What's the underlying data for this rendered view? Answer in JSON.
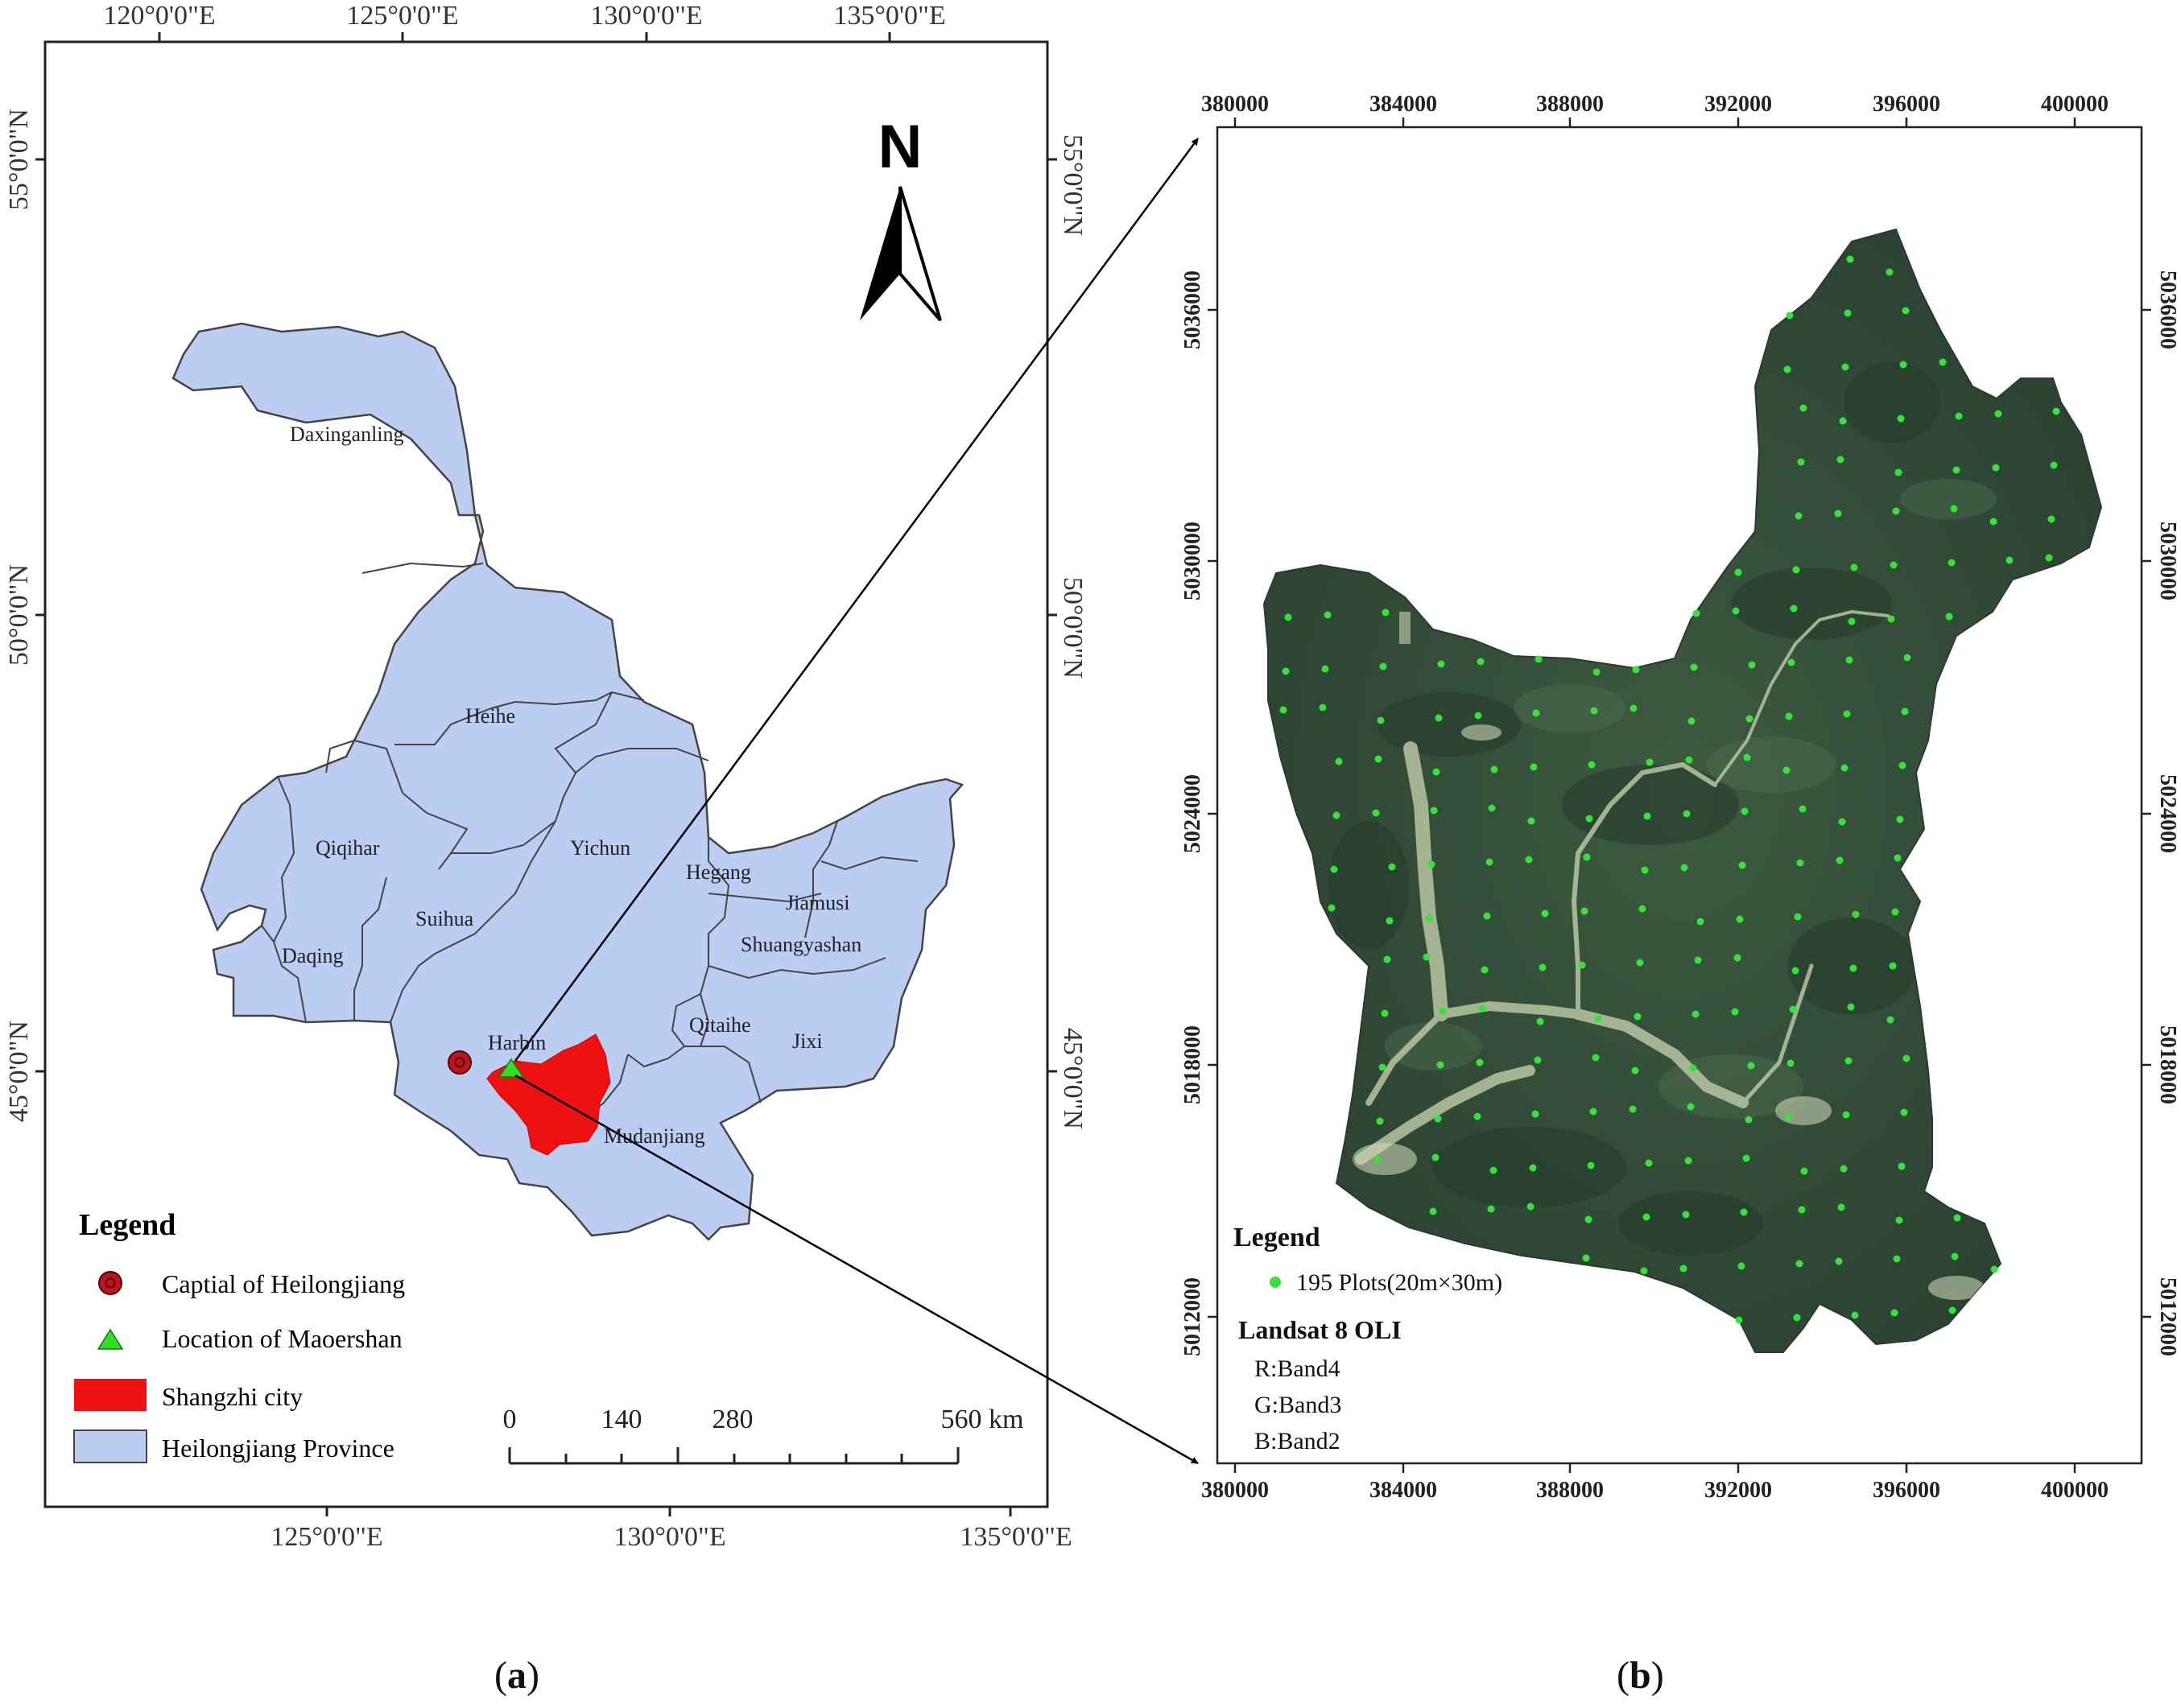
{
  "panel_a": {
    "lon_labels_top": [
      "120°0'0\"E",
      "125°0'0\"E",
      "130°0'0\"E",
      "135°0'0\"E"
    ],
    "lon_labels_bottom": [
      "125°0'0\"E",
      "130°0'0\"E",
      "135°0'0\"E"
    ],
    "lat_labels_left": [
      "55°0'0\"N",
      "50°0'0\"N",
      "45°0'0\"N"
    ],
    "lat_labels_right": [
      "55°0'0\"N",
      "50°0'0\"N",
      "45°0'0\"N"
    ],
    "north_label": "N",
    "regions": [
      "Daxinganling",
      "Heihe",
      "Qiqihar",
      "Yichun",
      "Hegang",
      "Jiamusi",
      "Suihua",
      "Daqing",
      "Shuangyashan",
      "Harbin",
      "Qitaihe",
      "Jixi",
      "Mudanjiang"
    ],
    "legend": {
      "title": "Legend",
      "items": [
        {
          "label": "Captial of Heilongjiang",
          "symbol": "circle",
          "color": "#c0141c"
        },
        {
          "label": "Location of Maoershan",
          "symbol": "triangle",
          "color": "#33dd22"
        },
        {
          "label": "Shangzhi city",
          "symbol": "rect",
          "color": "#ee1111"
        },
        {
          "label": "Heilongjiang Province",
          "symbol": "rect",
          "color": "#bccdf2"
        }
      ]
    },
    "scale_bar": {
      "ticks": [
        "0",
        "140",
        "280",
        "560 km"
      ]
    },
    "caption": "a"
  },
  "panel_b": {
    "x_ticks": [
      "380000",
      "384000",
      "388000",
      "392000",
      "396000",
      "400000"
    ],
    "y_ticks": [
      "5036000",
      "5030000",
      "5024000",
      "5018000",
      "5012000"
    ],
    "legend": {
      "title": "Legend",
      "plots_label": "195 Plots(20m×30m)",
      "plots_color": "#37e33a",
      "sensor": "Landsat 8 OLI",
      "bands": [
        "R:Band4",
        "G:Band3",
        "B:Band2"
      ]
    },
    "caption": "b"
  },
  "colors": {
    "province_fill": "#bccdf2",
    "shangzhi_fill": "#ee1111",
    "capital": "#c0141c",
    "maoershan": "#33dd22",
    "forest": "#2f4b36"
  }
}
